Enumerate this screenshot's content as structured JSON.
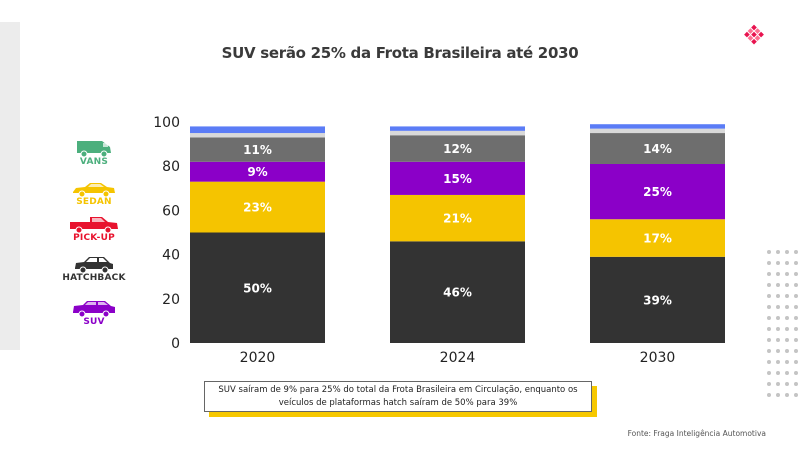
{
  "title": "SUV serão 25% da Frota Brasileira até 2030",
  "legend": [
    {
      "label": "VANS",
      "color": "#4caf7d",
      "icon": "van-icon"
    },
    {
      "label": "SEDAN",
      "color": "#f5c400",
      "icon": "sedan-icon"
    },
    {
      "label": "PICK-UP",
      "color": "#e8132e",
      "icon": "pickup-icon"
    },
    {
      "label": "HATCHBACK",
      "color": "#333333",
      "icon": "hatchback-icon"
    },
    {
      "label": "SUV",
      "color": "#8b00c8",
      "icon": "suv-icon"
    }
  ],
  "chart_data": {
    "type": "bar",
    "stacked": true,
    "title": "SUV serão 25% da Frota Brasileira até 2030",
    "categories": [
      "2020",
      "2024",
      "2030"
    ],
    "ylim": [
      0,
      100
    ],
    "yticks": [
      0,
      20,
      40,
      60,
      80,
      100
    ],
    "grid": false,
    "series": [
      {
        "key": "hatch",
        "color": "#333333",
        "values": [
          50,
          46,
          39
        ],
        "labels": [
          "50%",
          "46%",
          "39%"
        ]
      },
      {
        "key": "sedan",
        "color": "#f5c400",
        "values": [
          23,
          21,
          17
        ],
        "labels": [
          "23%",
          "21%",
          "17%"
        ]
      },
      {
        "key": "suv",
        "color": "#8b00c8",
        "values": [
          9,
          15,
          25
        ],
        "labels": [
          "9%",
          "15%",
          "25%"
        ]
      },
      {
        "key": "pickup",
        "color": "#6e6e6e",
        "values": [
          11,
          12,
          14
        ],
        "labels": [
          "11%",
          "12%",
          "14%"
        ]
      },
      {
        "key": "vans_gray",
        "color": "#d9d9d9",
        "values": [
          2,
          2,
          2
        ],
        "labels": [
          "",
          "",
          ""
        ]
      },
      {
        "key": "vans_blue",
        "color": "#5b7cf6",
        "values": [
          3,
          2,
          2
        ],
        "labels": [
          "",
          "",
          ""
        ]
      }
    ]
  },
  "note": {
    "line1": "SUV saíram de 9% para 25% do total da Frota Brasileira em Circulação, enquanto os",
    "line2": "veículos de plataformas hatch saíram de 50% para 39%"
  },
  "source": "Fonte: Fraga Inteligência Automotiva"
}
